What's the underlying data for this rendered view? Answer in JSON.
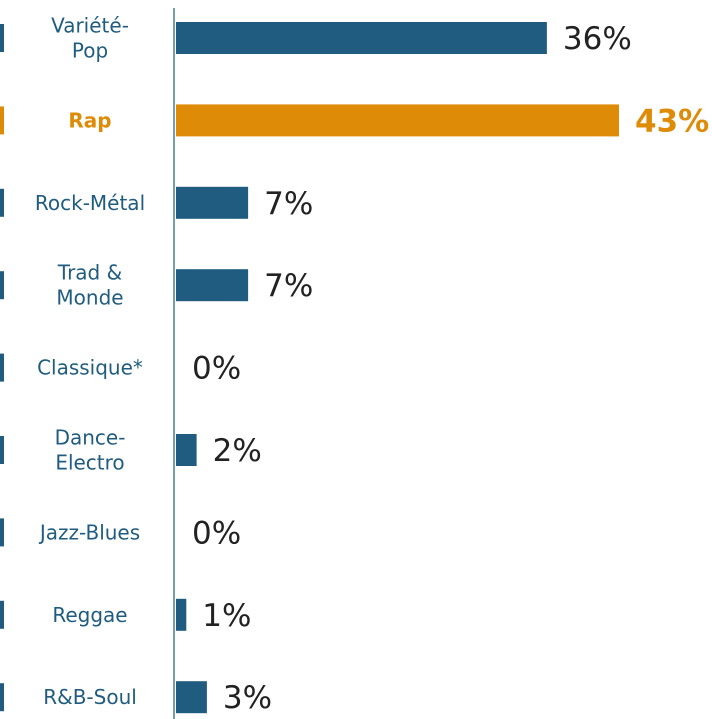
{
  "chart_data": {
    "type": "bar",
    "orientation": "horizontal",
    "categories": [
      "Variété-Pop",
      "Rap",
      "Rock-Métal",
      "Trad & Monde",
      "Classique*",
      "Dance-Electro",
      "Jazz-Blues",
      "Reggae",
      "R&B-Soul"
    ],
    "category_lines": [
      [
        "Variété-",
        "Pop"
      ],
      [
        "Rap"
      ],
      [
        "Rock-Métal"
      ],
      [
        "Trad &",
        "Monde"
      ],
      [
        "Classique*"
      ],
      [
        "Dance-",
        "Electro"
      ],
      [
        "Jazz-Blues"
      ],
      [
        "Reggae"
      ],
      [
        "R&B-Soul"
      ]
    ],
    "values": [
      36,
      43,
      7,
      7,
      0,
      2,
      0,
      1,
      3
    ],
    "value_labels": [
      "36%",
      "43%",
      "7%",
      "7%",
      "0%",
      "2%",
      "0%",
      "1%",
      "3%"
    ],
    "highlight_index": 1,
    "unit": "%",
    "xlim": [
      0,
      43
    ],
    "grid": false,
    "legend": "none"
  },
  "colors": {
    "bar": "#1f5c7f",
    "highlight": "#de8c08",
    "axis": "#1f5c7f",
    "label_text": "#1f5c7f",
    "value_text": "#222222",
    "background": "#ffffff"
  }
}
